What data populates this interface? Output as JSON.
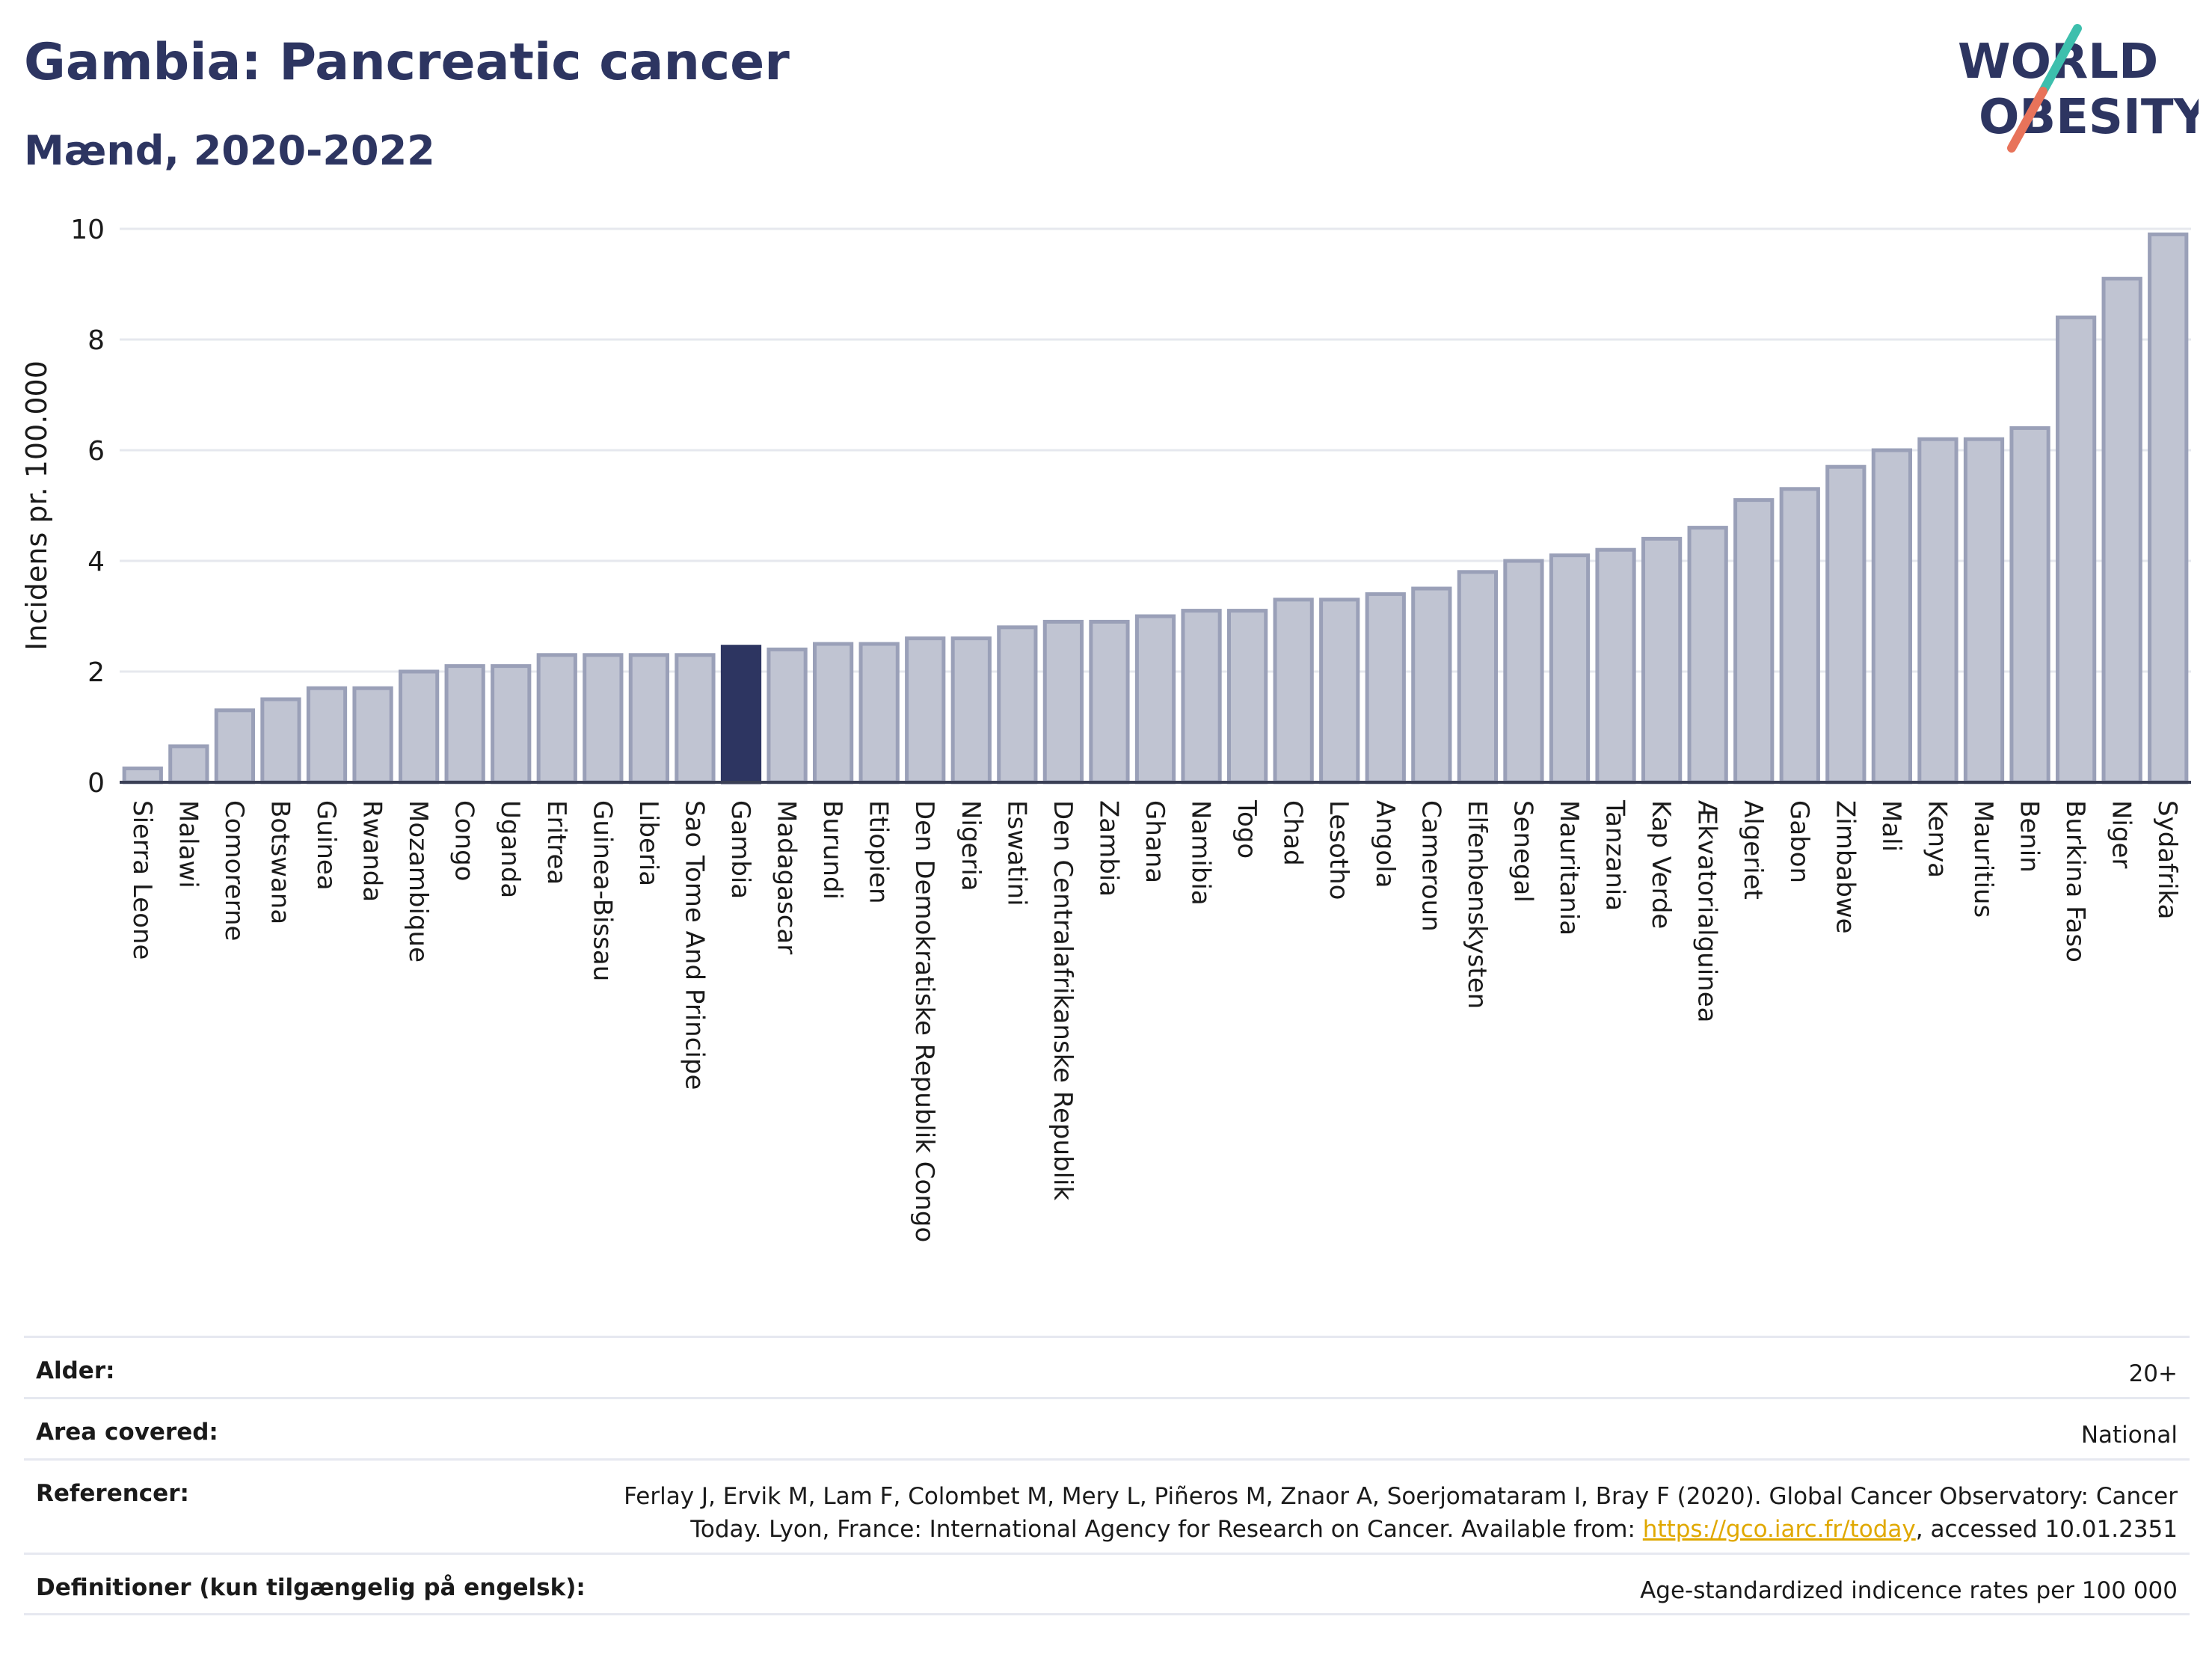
{
  "header": {
    "title": "Gambia: Pancreatic cancer",
    "subtitle": "Mænd, 2020-2022"
  },
  "logo": {
    "line1": "WORLD",
    "line2": "OBESITY",
    "colors": {
      "text": "#2d3561",
      "slash_top": "#3dbfad",
      "slash_bottom": "#e8735a"
    }
  },
  "chart_data": {
    "type": "bar",
    "title": "",
    "xlabel": "",
    "ylabel": "Incidens pr. 100.000",
    "ylim": [
      0,
      10
    ],
    "yticks": [
      0,
      2,
      4,
      6,
      8,
      10
    ],
    "grid": true,
    "highlight": "Gambia",
    "colors": {
      "bar": "#c0c4d2",
      "bar_edge": "#9aa0b8",
      "highlight": "#2d3561",
      "grid": "#e6e8ee"
    },
    "categories": [
      "Sierra Leone",
      "Malawi",
      "Comorerne",
      "Botswana",
      "Guinea",
      "Rwanda",
      "Mozambique",
      "Congo",
      "Uganda",
      "Eritrea",
      "Guinea-Bissau",
      "Liberia",
      "Sao Tome And Principe",
      "Gambia",
      "Madagascar",
      "Burundi",
      "Etiopien",
      "Den Demokratiske Republik Congo",
      "Nigeria",
      "Eswatini",
      "Den Centralafrikanske Republik",
      "Zambia",
      "Ghana",
      "Namibia",
      "Togo",
      "Chad",
      "Lesotho",
      "Angola",
      "Cameroun",
      "Elfenbenskysten",
      "Senegal",
      "Mauritania",
      "Tanzania",
      "Kap Verde",
      "Ækvatorialguinea",
      "Algeriet",
      "Gabon",
      "Zimbabwe",
      "Mali",
      "Kenya",
      "Mauritius",
      "Benin",
      "Burkina Faso",
      "Niger",
      "Sydafrika"
    ],
    "values": [
      0.25,
      0.65,
      1.3,
      1.5,
      1.7,
      1.7,
      2.0,
      2.1,
      2.1,
      2.3,
      2.3,
      2.3,
      2.3,
      2.45,
      2.4,
      2.5,
      2.5,
      2.6,
      2.6,
      2.8,
      2.9,
      2.9,
      3.0,
      3.1,
      3.1,
      3.3,
      3.3,
      3.4,
      3.5,
      3.8,
      4.0,
      4.1,
      4.2,
      4.4,
      4.6,
      5.1,
      5.3,
      5.7,
      6.0,
      6.2,
      6.2,
      6.4,
      8.4,
      9.1,
      9.9
    ]
  },
  "footer": {
    "rows": [
      {
        "key": "Alder:",
        "value": "20+"
      },
      {
        "key": "Area covered:",
        "value": "National"
      },
      {
        "key": "Referencer:",
        "value_line1": "Ferlay J, Ervik M, Lam F, Colombet M, Mery L, Piñeros M, Znaor A, Soerjomataram I, Bray F (2020). Global Cancer Observatory: Cancer",
        "value_line2_pre": "Today. Lyon, France: International Agency for Research on Cancer. Available from: ",
        "value_link": "https://gco.iarc.fr/today",
        "value_line2_post": ", accessed 10.01.2351"
      },
      {
        "key": "Definitioner (kun tilgængelig på engelsk):",
        "value": "Age-standardized indicence rates per 100 000"
      }
    ]
  }
}
